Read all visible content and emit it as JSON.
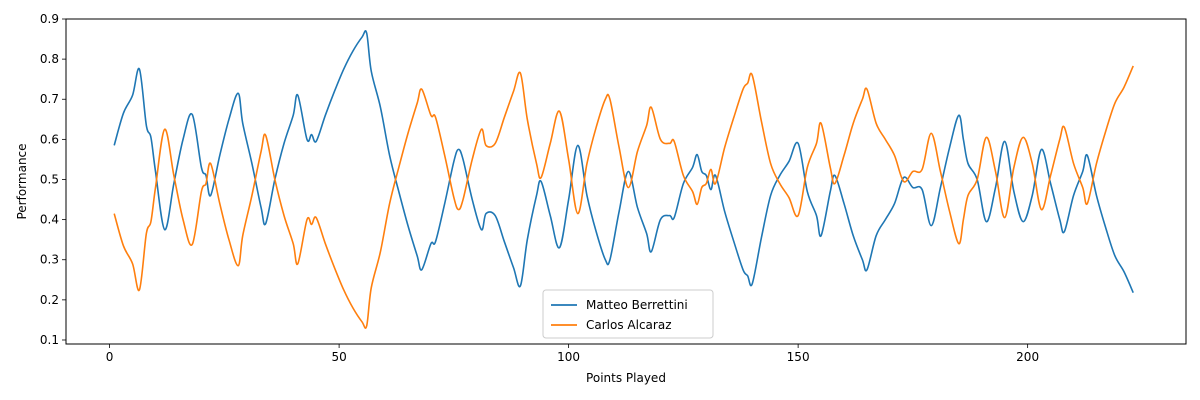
{
  "chart_data": {
    "type": "line",
    "title": "",
    "xlabel": "Points Played",
    "ylabel": "Performance",
    "xlim": [
      -9.5,
      234.5
    ],
    "ylim": [
      0.09,
      0.9
    ],
    "xticks": [
      0,
      50,
      100,
      150,
      200
    ],
    "yticks": [
      0.1,
      0.2,
      0.3,
      0.4,
      0.5,
      0.6,
      0.7,
      0.8,
      0.9
    ],
    "xtick_labels": [
      "0",
      "50",
      "100",
      "150",
      "200"
    ],
    "ytick_labels": [
      "0.1",
      "0.2",
      "0.3",
      "0.4",
      "0.5",
      "0.6",
      "0.7",
      "0.8",
      "0.9"
    ],
    "grid": false,
    "legend_position": "bottom-center",
    "series": [
      {
        "name": "Matteo Berrettini",
        "color": "#1f77b4",
        "points": [
          [
            1,
            0.585
          ],
          [
            3,
            0.665
          ],
          [
            5,
            0.71
          ],
          [
            6.5,
            0.775
          ],
          [
            8,
            0.635
          ],
          [
            9,
            0.605
          ],
          [
            10,
            0.52
          ],
          [
            12,
            0.375
          ],
          [
            14,
            0.49
          ],
          [
            16,
            0.6
          ],
          [
            18,
            0.662
          ],
          [
            20,
            0.53
          ],
          [
            21,
            0.51
          ],
          [
            22,
            0.46
          ],
          [
            24,
            0.56
          ],
          [
            26,
            0.65
          ],
          [
            28,
            0.715
          ],
          [
            29,
            0.64
          ],
          [
            31,
            0.54
          ],
          [
            33,
            0.43
          ],
          [
            34,
            0.39
          ],
          [
            36,
            0.5
          ],
          [
            38,
            0.59
          ],
          [
            40,
            0.66
          ],
          [
            41,
            0.71
          ],
          [
            43,
            0.6
          ],
          [
            44,
            0.612
          ],
          [
            45,
            0.595
          ],
          [
            47,
            0.66
          ],
          [
            49,
            0.72
          ],
          [
            51,
            0.775
          ],
          [
            53,
            0.82
          ],
          [
            55,
            0.855
          ],
          [
            56,
            0.865
          ],
          [
            57,
            0.77
          ],
          [
            59,
            0.68
          ],
          [
            61,
            0.56
          ],
          [
            63,
            0.47
          ],
          [
            65,
            0.385
          ],
          [
            67,
            0.31
          ],
          [
            68,
            0.275
          ],
          [
            70,
            0.34
          ],
          [
            71,
            0.345
          ],
          [
            73,
            0.44
          ],
          [
            75,
            0.545
          ],
          [
            76,
            0.575
          ],
          [
            77,
            0.55
          ],
          [
            79,
            0.45
          ],
          [
            81,
            0.375
          ],
          [
            82,
            0.415
          ],
          [
            84,
            0.41
          ],
          [
            86,
            0.345
          ],
          [
            88,
            0.28
          ],
          [
            89.5,
            0.235
          ],
          [
            91,
            0.35
          ],
          [
            93,
            0.46
          ],
          [
            94,
            0.495
          ],
          [
            96,
            0.41
          ],
          [
            98,
            0.33
          ],
          [
            100,
            0.45
          ],
          [
            102,
            0.585
          ],
          [
            104,
            0.46
          ],
          [
            106,
            0.37
          ],
          [
            108,
            0.3
          ],
          [
            109,
            0.3
          ],
          [
            111,
            0.42
          ],
          [
            113,
            0.52
          ],
          [
            115,
            0.43
          ],
          [
            117,
            0.365
          ],
          [
            118,
            0.32
          ],
          [
            120,
            0.4
          ],
          [
            122,
            0.41
          ],
          [
            123,
            0.405
          ],
          [
            125,
            0.49
          ],
          [
            127,
            0.53
          ],
          [
            128,
            0.562
          ],
          [
            129,
            0.52
          ],
          [
            130,
            0.51
          ],
          [
            131,
            0.475
          ],
          [
            132,
            0.51
          ],
          [
            134,
            0.42
          ],
          [
            136,
            0.345
          ],
          [
            138,
            0.275
          ],
          [
            139,
            0.26
          ],
          [
            140,
            0.24
          ],
          [
            142,
            0.355
          ],
          [
            144,
            0.46
          ],
          [
            146,
            0.51
          ],
          [
            148,
            0.545
          ],
          [
            150,
            0.59
          ],
          [
            152,
            0.47
          ],
          [
            154,
            0.41
          ],
          [
            155,
            0.36
          ],
          [
            157,
            0.47
          ],
          [
            158,
            0.51
          ],
          [
            160,
            0.44
          ],
          [
            162,
            0.36
          ],
          [
            164,
            0.3
          ],
          [
            165,
            0.275
          ],
          [
            167,
            0.36
          ],
          [
            169,
            0.4
          ],
          [
            171,
            0.44
          ],
          [
            173,
            0.505
          ],
          [
            175,
            0.48
          ],
          [
            177,
            0.475
          ],
          [
            179,
            0.385
          ],
          [
            181,
            0.48
          ],
          [
            183,
            0.58
          ],
          [
            185,
            0.66
          ],
          [
            186,
            0.6
          ],
          [
            187,
            0.54
          ],
          [
            189,
            0.5
          ],
          [
            191,
            0.395
          ],
          [
            193,
            0.48
          ],
          [
            195,
            0.595
          ],
          [
            197,
            0.47
          ],
          [
            199,
            0.395
          ],
          [
            201,
            0.46
          ],
          [
            203,
            0.575
          ],
          [
            205,
            0.49
          ],
          [
            207,
            0.4
          ],
          [
            208,
            0.37
          ],
          [
            210,
            0.46
          ],
          [
            212,
            0.52
          ],
          [
            213,
            0.56
          ],
          [
            215,
            0.46
          ],
          [
            217,
            0.38
          ],
          [
            219,
            0.31
          ],
          [
            221,
            0.27
          ],
          [
            223,
            0.218
          ]
        ]
      },
      {
        "name": "Carlos Alcaraz",
        "color": "#ff7f0e",
        "points": [
          [
            1,
            0.415
          ],
          [
            3,
            0.335
          ],
          [
            5,
            0.29
          ],
          [
            6.5,
            0.225
          ],
          [
            8,
            0.365
          ],
          [
            9,
            0.395
          ],
          [
            10,
            0.48
          ],
          [
            12,
            0.625
          ],
          [
            14,
            0.51
          ],
          [
            16,
            0.4
          ],
          [
            18,
            0.338
          ],
          [
            20,
            0.47
          ],
          [
            21,
            0.49
          ],
          [
            22,
            0.54
          ],
          [
            24,
            0.44
          ],
          [
            26,
            0.35
          ],
          [
            28,
            0.285
          ],
          [
            29,
            0.36
          ],
          [
            31,
            0.46
          ],
          [
            33,
            0.57
          ],
          [
            34,
            0.61
          ],
          [
            36,
            0.5
          ],
          [
            38,
            0.41
          ],
          [
            40,
            0.34
          ],
          [
            41,
            0.29
          ],
          [
            43,
            0.4
          ],
          [
            44,
            0.388
          ],
          [
            45,
            0.405
          ],
          [
            47,
            0.34
          ],
          [
            49,
            0.28
          ],
          [
            51,
            0.225
          ],
          [
            53,
            0.18
          ],
          [
            55,
            0.145
          ],
          [
            56,
            0.135
          ],
          [
            57,
            0.23
          ],
          [
            59,
            0.32
          ],
          [
            61,
            0.44
          ],
          [
            63,
            0.53
          ],
          [
            65,
            0.615
          ],
          [
            67,
            0.69
          ],
          [
            68,
            0.725
          ],
          [
            70,
            0.66
          ],
          [
            71,
            0.655
          ],
          [
            73,
            0.56
          ],
          [
            75,
            0.455
          ],
          [
            76,
            0.425
          ],
          [
            77,
            0.45
          ],
          [
            79,
            0.55
          ],
          [
            81,
            0.625
          ],
          [
            82,
            0.585
          ],
          [
            84,
            0.59
          ],
          [
            86,
            0.655
          ],
          [
            88,
            0.72
          ],
          [
            89.5,
            0.765
          ],
          [
            91,
            0.65
          ],
          [
            93,
            0.54
          ],
          [
            94,
            0.505
          ],
          [
            96,
            0.59
          ],
          [
            98,
            0.67
          ],
          [
            100,
            0.55
          ],
          [
            102,
            0.415
          ],
          [
            104,
            0.54
          ],
          [
            106,
            0.63
          ],
          [
            108,
            0.7
          ],
          [
            109,
            0.7
          ],
          [
            111,
            0.58
          ],
          [
            113,
            0.48
          ],
          [
            115,
            0.57
          ],
          [
            117,
            0.635
          ],
          [
            118,
            0.68
          ],
          [
            120,
            0.6
          ],
          [
            122,
            0.59
          ],
          [
            123,
            0.595
          ],
          [
            125,
            0.51
          ],
          [
            127,
            0.47
          ],
          [
            128,
            0.438
          ],
          [
            129,
            0.48
          ],
          [
            130,
            0.49
          ],
          [
            131,
            0.525
          ],
          [
            132,
            0.49
          ],
          [
            134,
            0.58
          ],
          [
            136,
            0.655
          ],
          [
            138,
            0.725
          ],
          [
            139,
            0.74
          ],
          [
            140,
            0.76
          ],
          [
            142,
            0.645
          ],
          [
            144,
            0.54
          ],
          [
            146,
            0.49
          ],
          [
            148,
            0.455
          ],
          [
            150,
            0.41
          ],
          [
            152,
            0.53
          ],
          [
            154,
            0.59
          ],
          [
            155,
            0.64
          ],
          [
            157,
            0.53
          ],
          [
            158,
            0.49
          ],
          [
            160,
            0.56
          ],
          [
            162,
            0.64
          ],
          [
            164,
            0.7
          ],
          [
            165,
            0.725
          ],
          [
            167,
            0.64
          ],
          [
            169,
            0.6
          ],
          [
            171,
            0.56
          ],
          [
            173,
            0.495
          ],
          [
            175,
            0.52
          ],
          [
            177,
            0.525
          ],
          [
            179,
            0.615
          ],
          [
            181,
            0.52
          ],
          [
            183,
            0.42
          ],
          [
            185,
            0.34
          ],
          [
            186,
            0.4
          ],
          [
            187,
            0.46
          ],
          [
            189,
            0.5
          ],
          [
            191,
            0.605
          ],
          [
            193,
            0.52
          ],
          [
            195,
            0.405
          ],
          [
            197,
            0.53
          ],
          [
            199,
            0.605
          ],
          [
            201,
            0.54
          ],
          [
            203,
            0.425
          ],
          [
            205,
            0.51
          ],
          [
            207,
            0.6
          ],
          [
            208,
            0.63
          ],
          [
            210,
            0.54
          ],
          [
            212,
            0.48
          ],
          [
            213,
            0.44
          ],
          [
            215,
            0.54
          ],
          [
            217,
            0.62
          ],
          [
            219,
            0.69
          ],
          [
            221,
            0.73
          ],
          [
            223,
            0.783
          ]
        ]
      }
    ]
  }
}
